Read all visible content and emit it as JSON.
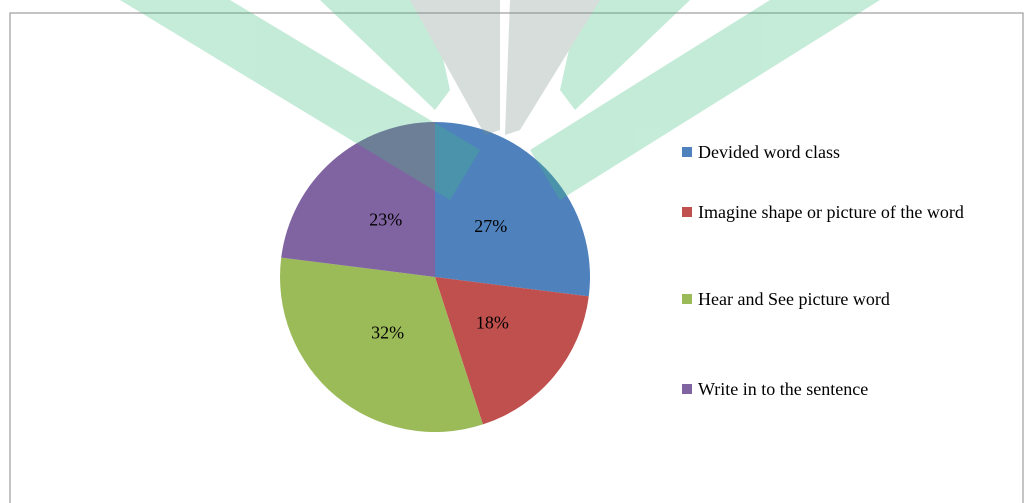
{
  "chart_data": {
    "type": "pie",
    "categories": [
      "Devided word class",
      "Imagine shape or picture of the word",
      "Hear and See picture word",
      "Write in to the sentence"
    ],
    "values": [
      27,
      18,
      32,
      23
    ],
    "value_labels": [
      "27%",
      "18%",
      "32%",
      "23%"
    ],
    "colors": [
      "#4f81bd",
      "#c0504d",
      "#9bbb59",
      "#8064a2"
    ],
    "legend": "right"
  }
}
